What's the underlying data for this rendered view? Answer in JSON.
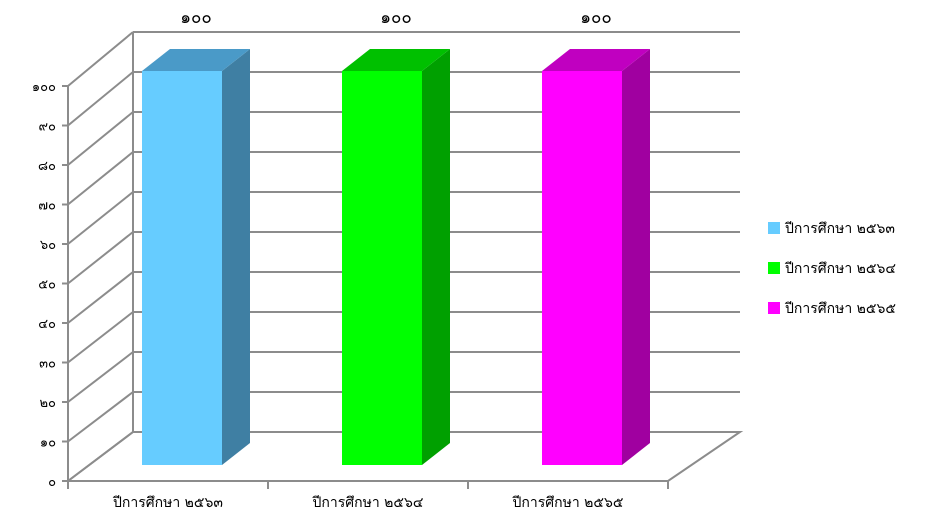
{
  "chart_data": {
    "type": "bar",
    "categories": [
      "ปีการศึกษา ๒๕๖๓",
      "ปีการศึกษา ๒๕๖๔",
      "ปีการศึกษา ๒๕๖๕"
    ],
    "values": [
      100,
      100,
      100
    ],
    "value_labels": [
      "๑๐๐",
      "๑๐๐",
      "๑๐๐"
    ],
    "ylim": [
      0,
      100
    ],
    "y_ticks": [
      0,
      10,
      20,
      30,
      40,
      50,
      60,
      70,
      80,
      90,
      100
    ],
    "y_tick_labels": [
      "๐",
      "๑๐",
      "๒๐",
      "๓๐",
      "๔๐",
      "๕๐",
      "๖๐",
      "๗๐",
      "๘๐",
      "๙๐",
      "๑๐๐"
    ],
    "grid": true,
    "style": "3d-column",
    "legend": {
      "placement": "right",
      "entries": [
        "ปีการศึกษา ๒๕๖๓",
        "ปีการศึกษา ๒๕๖๔",
        "ปีการศึกษา ๒๕๖๕"
      ]
    },
    "colors": [
      {
        "front": "#66CCFF",
        "side": "#3F7FA3",
        "top": "#4A9AC8"
      },
      {
        "front": "#00FF00",
        "side": "#00A000",
        "top": "#00C000"
      },
      {
        "front": "#FF00FF",
        "side": "#A000A0",
        "top": "#C000C0"
      }
    ]
  }
}
